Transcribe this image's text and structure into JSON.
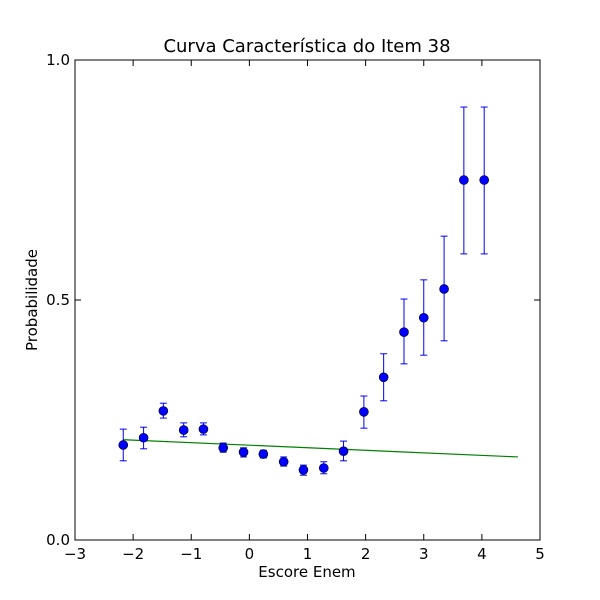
{
  "chart_data": {
    "type": "scatter",
    "title": "Curva Característica do Item 38",
    "xlabel": "Escore Enem",
    "ylabel": "Probabilidade",
    "xlim": [
      -3,
      5
    ],
    "ylim": [
      0.0,
      1.0
    ],
    "xticks": [
      -3,
      -2,
      -1,
      0,
      1,
      2,
      3,
      4,
      5
    ],
    "xtick_labels": [
      "−3",
      "−2",
      "−1",
      "0",
      "1",
      "2",
      "3",
      "4",
      "5"
    ],
    "yticks": [
      0.0,
      0.5,
      1.0
    ],
    "ytick_labels": [
      "0.0",
      "0.5",
      "1.0"
    ],
    "grid": false,
    "series": [
      {
        "kind": "errorbar",
        "color": "#0000ff",
        "points": [
          {
            "x": -2.17,
            "y": 0.198,
            "lo": 0.165,
            "hi": 0.231
          },
          {
            "x": -1.82,
            "y": 0.213,
            "lo": 0.19,
            "hi": 0.235
          },
          {
            "x": -1.48,
            "y": 0.269,
            "lo": 0.254,
            "hi": 0.285
          },
          {
            "x": -1.13,
            "y": 0.229,
            "lo": 0.215,
            "hi": 0.244
          },
          {
            "x": -0.79,
            "y": 0.231,
            "lo": 0.219,
            "hi": 0.244
          },
          {
            "x": -0.45,
            "y": 0.192,
            "lo": 0.183,
            "hi": 0.202
          },
          {
            "x": -0.1,
            "y": 0.183,
            "lo": 0.173,
            "hi": 0.192
          },
          {
            "x": 0.24,
            "y": 0.179,
            "lo": 0.171,
            "hi": 0.187
          },
          {
            "x": 0.59,
            "y": 0.163,
            "lo": 0.154,
            "hi": 0.173
          },
          {
            "x": 0.93,
            "y": 0.146,
            "lo": 0.135,
            "hi": 0.156
          },
          {
            "x": 1.28,
            "y": 0.15,
            "lo": 0.138,
            "hi": 0.163
          },
          {
            "x": 1.62,
            "y": 0.185,
            "lo": 0.165,
            "hi": 0.206
          },
          {
            "x": 1.97,
            "y": 0.267,
            "lo": 0.233,
            "hi": 0.3
          },
          {
            "x": 2.31,
            "y": 0.339,
            "lo": 0.29,
            "hi": 0.388
          },
          {
            "x": 2.66,
            "y": 0.433,
            "lo": 0.367,
            "hi": 0.502
          },
          {
            "x": 3.0,
            "y": 0.463,
            "lo": 0.385,
            "hi": 0.542
          },
          {
            "x": 3.35,
            "y": 0.523,
            "lo": 0.415,
            "hi": 0.633
          },
          {
            "x": 3.69,
            "y": 0.75,
            "lo": 0.596,
            "hi": 0.902
          },
          {
            "x": 4.04,
            "y": 0.75,
            "lo": 0.596,
            "hi": 0.902
          }
        ]
      },
      {
        "kind": "line",
        "color": "#008000",
        "x": [
          -2.17,
          4.62
        ],
        "y": [
          0.209,
          0.173
        ]
      }
    ]
  }
}
